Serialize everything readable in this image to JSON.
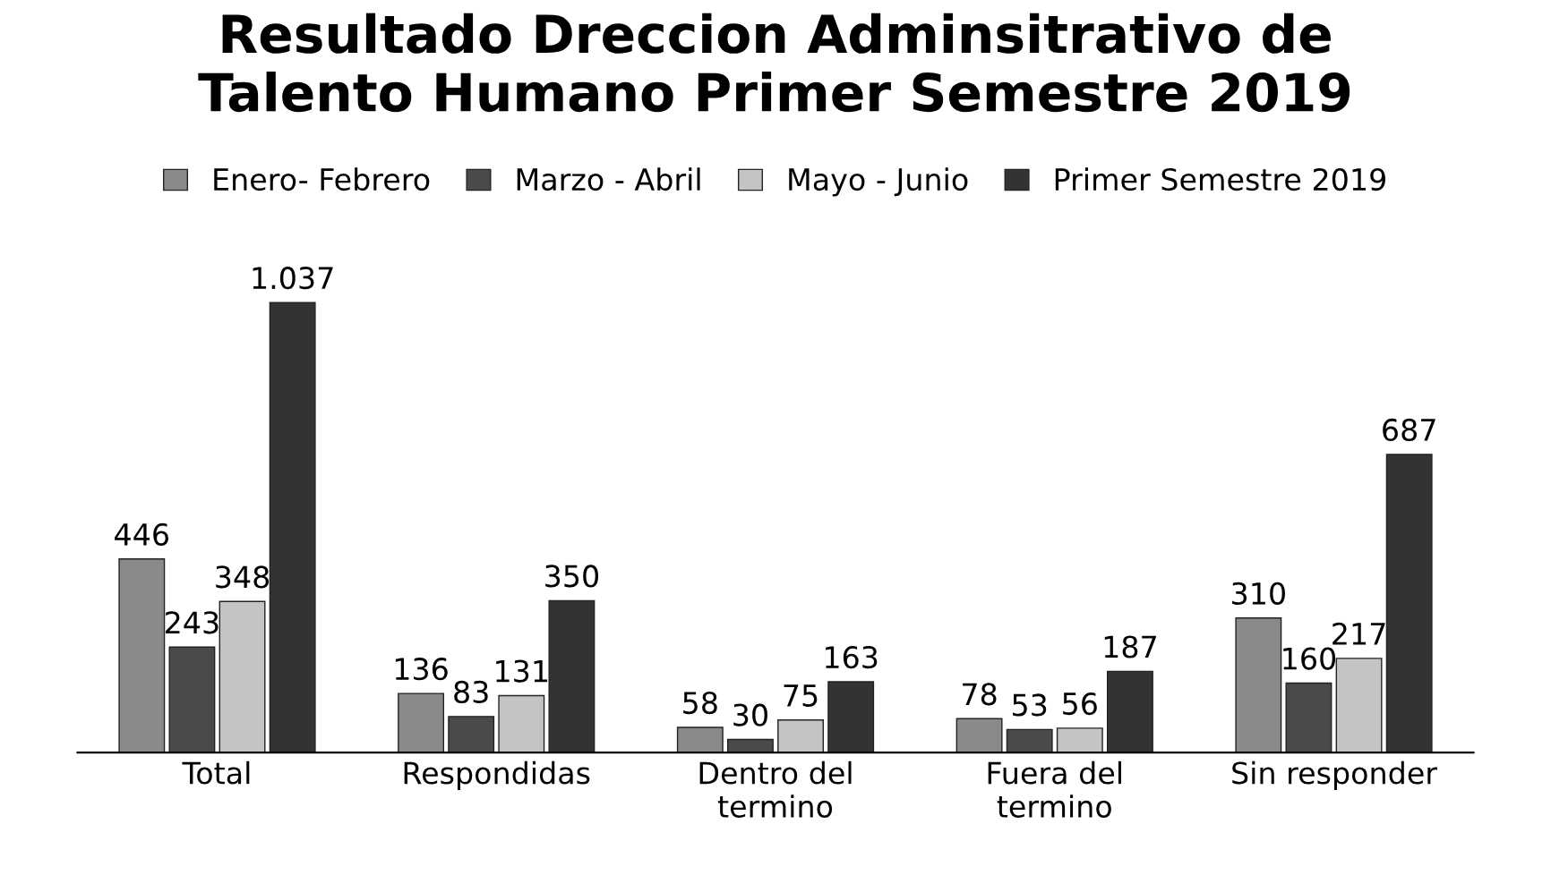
{
  "chart_data": {
    "type": "bar",
    "title": "Resultado Dreccion Adminsitrativo de\nTalento Humano Primer Semestre 2019",
    "categories": [
      "Total",
      "Respondidas",
      "Dentro del\ntermino",
      "Fuera del\ntermino",
      "Sin responder"
    ],
    "series": [
      {
        "name": "Enero- Febrero",
        "color": "#8a8a8a",
        "values": [
          446,
          136,
          58,
          78,
          310
        ],
        "value_labels": [
          "446",
          "136",
          "58",
          "78",
          "310"
        ]
      },
      {
        "name": "Marzo - Abril",
        "color": "#4a4a4a",
        "values": [
          243,
          83,
          30,
          53,
          160
        ],
        "value_labels": [
          "243",
          "83",
          "30",
          "53",
          "160"
        ]
      },
      {
        "name": "Mayo - Junio",
        "color": "#c4c4c4",
        "values": [
          348,
          131,
          75,
          56,
          217
        ],
        "value_labels": [
          "348",
          "131",
          "75",
          "56",
          "217"
        ]
      },
      {
        "name": "Primer Semestre 2019",
        "color": "#333333",
        "values": [
          1037,
          350,
          163,
          187,
          687
        ],
        "value_labels": [
          "1.037",
          "350",
          "163",
          "187",
          "687"
        ]
      }
    ],
    "legend": "top",
    "grid": false
  }
}
